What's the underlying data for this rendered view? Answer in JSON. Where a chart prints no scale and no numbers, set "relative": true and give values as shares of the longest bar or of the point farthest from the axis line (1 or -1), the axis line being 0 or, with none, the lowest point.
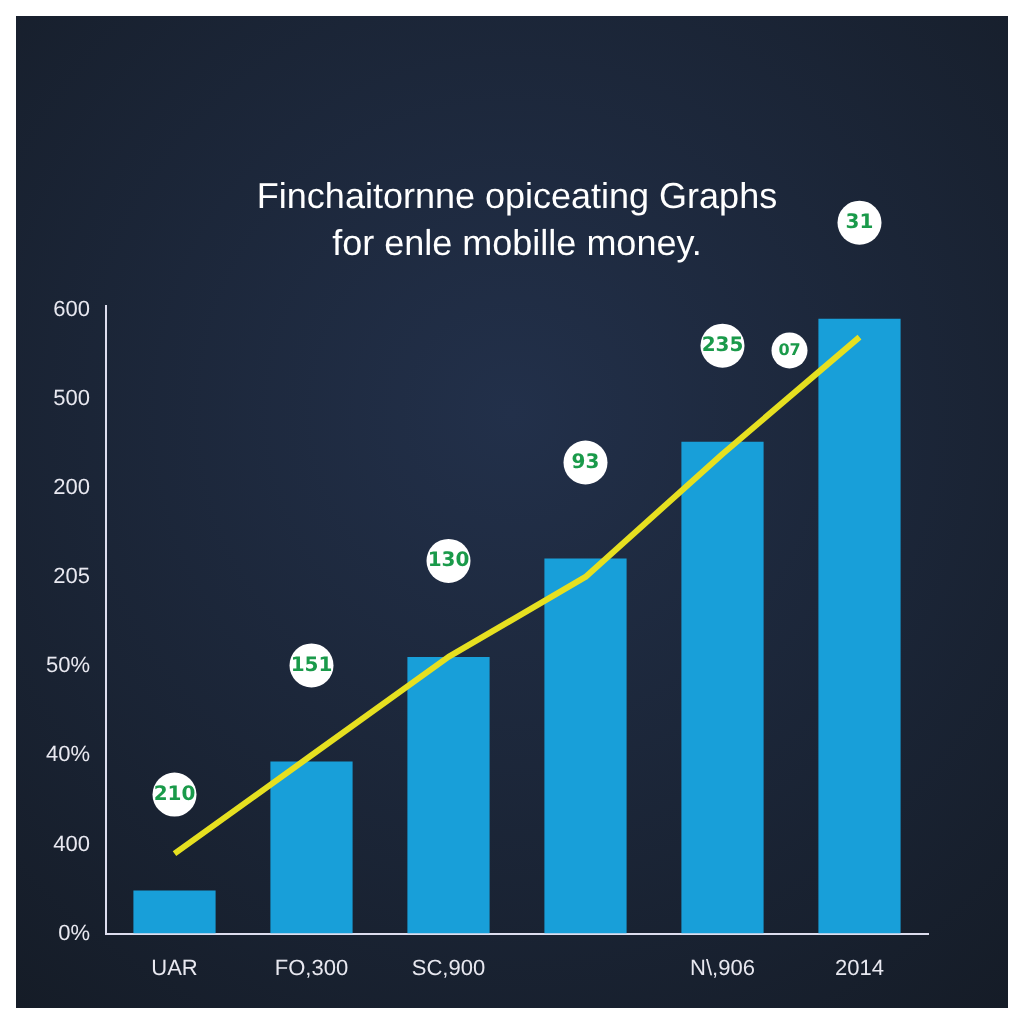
{
  "chart_data": {
    "type": "bar",
    "title": "Finchaitornne opiceating Graphs",
    "subtitle": "for enle mobille money.",
    "categories": [
      "UAR",
      "FO,300",
      "SC,900",
      null,
      "N\\,906",
      "2014"
    ],
    "relative": true,
    "series": [
      {
        "color": "#189fd9",
        "values": [
          0.07,
          0.28,
          0.45,
          0.61,
          0.8,
          1
        ]
      },
      {
        "type": "line",
        "color": "#e6e020",
        "values": [
          0.13,
          0.29,
          0.45,
          0.58,
          0.78,
          0.97
        ]
      }
    ],
    "annotations": [
      "210",
      "151",
      "130",
      "93",
      "235",
      "31",
      "07",
      "0%",
      "400",
      "40%",
      "50%",
      "205",
      "200",
      "500",
      "600"
    ],
    "grid": false,
    "legend": false,
    "marker": "none"
  }
}
